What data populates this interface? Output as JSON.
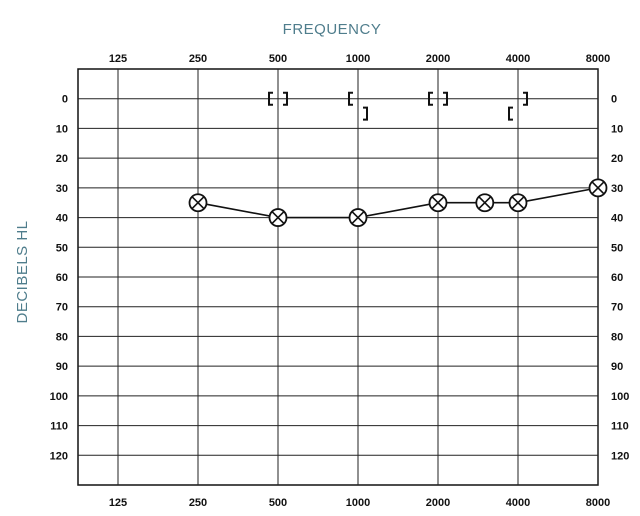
{
  "chart_data": {
    "type": "line",
    "title": "FREQUENCY",
    "xlabel": "FREQUENCY",
    "ylabel": "DECIBELS HL",
    "x_ticks": [
      "125",
      "250",
      "500",
      "1000",
      "2000",
      "4000",
      "8000"
    ],
    "y_ticks": [
      "0",
      "10",
      "20",
      "30",
      "40",
      "50",
      "60",
      "70",
      "80",
      "90",
      "100",
      "110",
      "120"
    ],
    "ylim": [
      -10,
      130
    ],
    "y_inverted": true,
    "x_scale": "log2",
    "grid": true,
    "colors": {
      "ink": "#111111",
      "axis_title": "#4f7d8c"
    },
    "series": [
      {
        "symbol": "circle-x",
        "connected": true,
        "points": [
          {
            "x": 250,
            "y": 35
          },
          {
            "x": 500,
            "y": 40
          },
          {
            "x": 1000,
            "y": 40
          },
          {
            "x": 2000,
            "y": 35
          },
          {
            "x": 3000,
            "y": 35
          },
          {
            "x": 4000,
            "y": 35
          },
          {
            "x": 8000,
            "y": 30
          }
        ]
      },
      {
        "symbol": "bracket-pair",
        "connected": false,
        "points": [
          {
            "x": 500,
            "y": 0,
            "left_y": 0,
            "right_y": 0
          },
          {
            "x": 1000,
            "y": 0,
            "left_y": 0,
            "right_y": 5
          },
          {
            "x": 2000,
            "y": 0,
            "left_y": 0,
            "right_y": 0
          },
          {
            "x": 4000,
            "y": 0,
            "left_y": 5,
            "right_y": 0
          }
        ]
      }
    ]
  }
}
